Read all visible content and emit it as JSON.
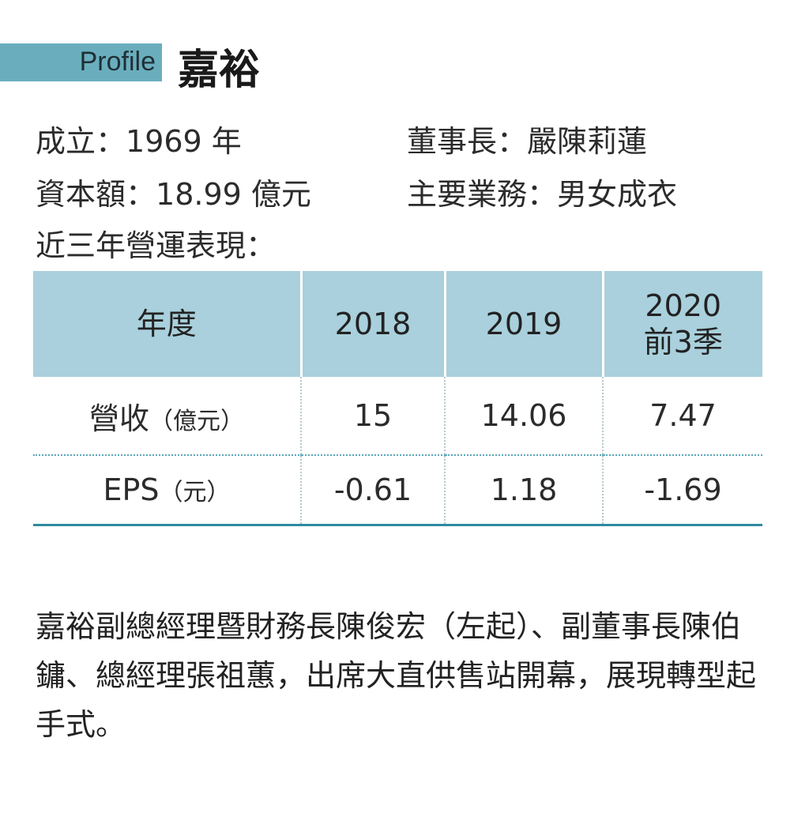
{
  "header": {
    "tag": "Profile",
    "title": "嘉裕"
  },
  "info": [
    {
      "label": "成立：",
      "value": "1969 年"
    },
    {
      "label": "董事長：",
      "value": "嚴陳莉蓮"
    },
    {
      "label": "資本額：",
      "value": "18.99 億元"
    },
    {
      "label": "主要業務：",
      "value": "男女成衣"
    }
  ],
  "section_title": "近三年營運表現：",
  "table": {
    "header": [
      "年度",
      "2018",
      "2019",
      "2020\n前3季"
    ],
    "rows": [
      {
        "label": "營收",
        "unit": "（億元）",
        "cells": [
          "15",
          "14.06",
          "7.47"
        ]
      },
      {
        "label": "EPS",
        "unit": "（元）",
        "cells": [
          "-0.61",
          "1.18",
          "-1.69"
        ]
      }
    ]
  },
  "caption": "嘉裕副總經理暨財務長陳俊宏（左起）、副董事長陳伯鏞、總經理張祖蕙，出席大直供售站開幕，展現轉型起手式。"
}
